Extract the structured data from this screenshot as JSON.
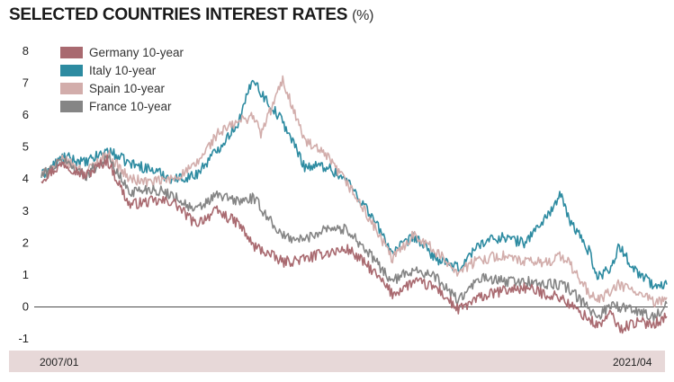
{
  "chart_data": {
    "type": "line",
    "title": "SELECTED COUNTRIES INTEREST RATES",
    "unit": "(%)",
    "xlabel": "",
    "ylabel": "",
    "x_start": "2007/01",
    "x_end": "2021/04",
    "ylim": [
      -1,
      8
    ],
    "yticks": [
      -1,
      0,
      1,
      2,
      3,
      4,
      5,
      6,
      7,
      8
    ],
    "grid": false,
    "legend_position": "top-left",
    "x": [
      "2007/01",
      "2007/07",
      "2008/01",
      "2008/07",
      "2009/01",
      "2009/07",
      "2010/01",
      "2010/07",
      "2011/01",
      "2011/07",
      "2011/11",
      "2012/01",
      "2012/07",
      "2013/01",
      "2013/07",
      "2014/01",
      "2014/07",
      "2015/01",
      "2015/07",
      "2016/01",
      "2016/07",
      "2017/01",
      "2017/07",
      "2018/01",
      "2018/07",
      "2018/11",
      "2019/01",
      "2019/07",
      "2019/09",
      "2020/01",
      "2020/03",
      "2020/07",
      "2021/01",
      "2021/04"
    ],
    "series": [
      {
        "name": "Germany 10-year",
        "color": "#a96a70",
        "values": [
          4.0,
          4.5,
          4.1,
          4.6,
          3.2,
          3.3,
          3.3,
          2.6,
          3.0,
          2.6,
          1.9,
          1.8,
          1.4,
          1.5,
          1.7,
          1.8,
          1.2,
          0.4,
          0.8,
          0.6,
          -0.1,
          0.3,
          0.5,
          0.6,
          0.4,
          0.3,
          0.1,
          -0.4,
          -0.6,
          -0.2,
          -0.7,
          -0.5,
          -0.5,
          -0.3
        ]
      },
      {
        "name": "Italy 10-year",
        "color": "#2d8ba1",
        "values": [
          4.1,
          4.7,
          4.5,
          4.9,
          4.5,
          4.3,
          4.0,
          4.1,
          4.9,
          5.8,
          7.2,
          6.7,
          5.8,
          4.4,
          4.4,
          3.9,
          2.9,
          1.7,
          2.2,
          1.5,
          1.2,
          2.0,
          2.2,
          2.0,
          2.8,
          3.5,
          2.8,
          1.7,
          0.9,
          1.3,
          1.9,
          1.2,
          0.6,
          0.7
        ]
      },
      {
        "name": "Spain 10-year",
        "color": "#d2adab",
        "values": [
          4.1,
          4.6,
          4.2,
          4.8,
          4.0,
          3.9,
          4.0,
          4.4,
          5.4,
          5.8,
          6.0,
          5.4,
          7.1,
          5.2,
          4.7,
          3.8,
          2.7,
          1.5,
          2.3,
          1.7,
          1.1,
          1.5,
          1.6,
          1.4,
          1.4,
          1.6,
          1.4,
          0.4,
          0.2,
          0.5,
          0.7,
          0.5,
          0.1,
          0.3
        ]
      },
      {
        "name": "France 10-year",
        "color": "#858585",
        "values": [
          4.1,
          4.6,
          4.1,
          4.7,
          3.6,
          3.7,
          3.5,
          3.0,
          3.5,
          3.3,
          3.4,
          3.1,
          2.2,
          2.1,
          2.5,
          2.4,
          1.6,
          0.8,
          1.2,
          0.9,
          0.2,
          0.9,
          0.8,
          0.8,
          0.7,
          0.7,
          0.6,
          -0.1,
          -0.3,
          0.1,
          0.0,
          -0.1,
          -0.3,
          0.1
        ]
      }
    ]
  }
}
